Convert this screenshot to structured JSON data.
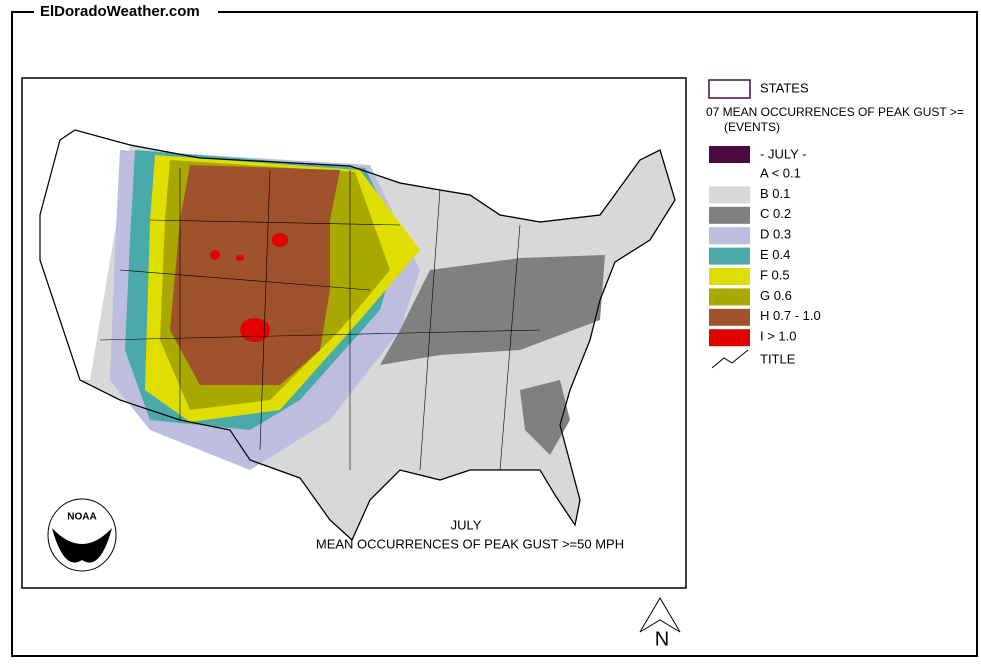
{
  "header": {
    "site": "ElDoradoWeather.com"
  },
  "map": {
    "title": "JULY",
    "subtitle": "MEAN OCCURRENCES OF PEAK GUST >=50 MPH",
    "logo": "NOAA",
    "compass": "N"
  },
  "legend": {
    "states": "STATES",
    "heading": "07 MEAN OCCURRENCES OF PEAK GUST >=",
    "units": "(EVENTS)",
    "period": {
      "label": "- JULY -",
      "color": "#4a0a40"
    },
    "items": [
      {
        "label": "A < 0.1",
        "color": "#ffffff"
      },
      {
        "label": "B 0.1",
        "color": "#d8d8d8"
      },
      {
        "label": "C 0.2",
        "color": "#808080"
      },
      {
        "label": "D 0.3",
        "color": "#bdbde0"
      },
      {
        "label": "E 0.4",
        "color": "#4aa9a9"
      },
      {
        "label": "F 0.5",
        "color": "#dede00"
      },
      {
        "label": "G 0.6",
        "color": "#a8a800"
      },
      {
        "label": "H 0.7 - 1.0",
        "color": "#a0522d"
      },
      {
        "label": "I > 1.0",
        "color": "#e00000"
      }
    ],
    "title_entry": "TITLE"
  }
}
